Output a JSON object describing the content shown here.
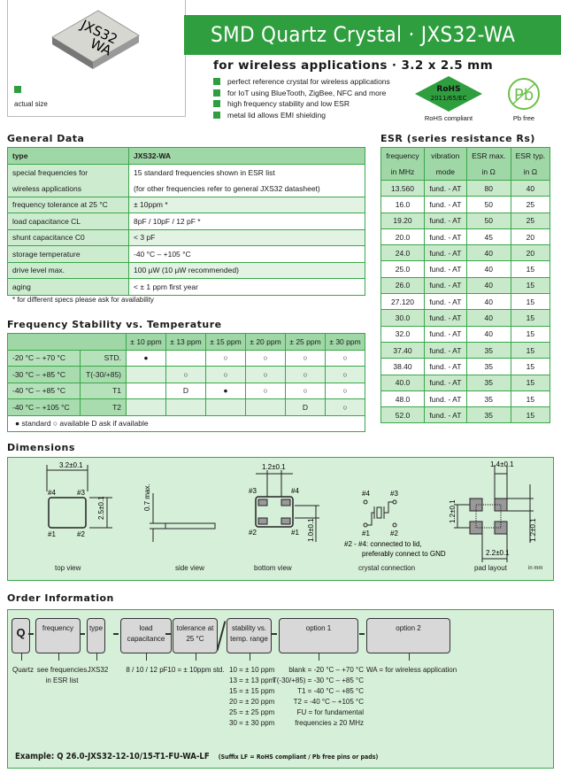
{
  "header": {
    "photo_marking_line1": "JXS32",
    "photo_marking_line2": "WA",
    "actual_size_label": "actual size",
    "title": "SMD Quartz Crystal · JXS32-WA",
    "subtitle": "for wireless applications · 3.2 x 2.5 mm",
    "bullets": [
      "perfect reference crystal for wireless applications",
      "for IoT using BlueTooth, ZigBee, NFC and more",
      "high frequency stability and low ESR",
      "metal lid allows EMI shielding"
    ],
    "rohs_badge": {
      "title": "RoHS",
      "directive": "2011/65/EC",
      "caption": "RoHS compliant"
    },
    "pb_badge": {
      "symbol": "Pb",
      "caption": "Pb free"
    },
    "accent_color": "#2e9e3e"
  },
  "general_data": {
    "heading": "General Data",
    "header_row": [
      "type",
      "JXS32-WA"
    ],
    "rows": [
      [
        "special frequencies for",
        "15 standard frequencies shown in ESR list"
      ],
      [
        "wireless applications",
        "(for other frequencies refer to general JXS32 datasheet)"
      ],
      [
        "frequency tolerance at 25 °C",
        "± 10ppm *"
      ],
      [
        "load capacitance CL",
        "8pF / 10pF / 12 pF *"
      ],
      [
        "shunt capacitance C0",
        "< 3 pF"
      ],
      [
        "storage temperature",
        "-40 °C – +105 °C"
      ],
      [
        "drive level max.",
        "100 µW (10 µW recommended)"
      ],
      [
        "aging",
        "< ± 1 ppm first year"
      ]
    ],
    "footnote": "* for different specs please ask for availability"
  },
  "frequency_stability": {
    "heading": "Frequency Stability vs. Temperature",
    "columns": [
      "± 10 ppm",
      "± 13 ppm",
      "± 15 ppm",
      "± 20 ppm",
      "± 25 ppm",
      "± 30 ppm"
    ],
    "rows": [
      {
        "range": "-20 °C –  +70 °C",
        "code": "STD.",
        "cells": [
          "●",
          "",
          "○",
          "○",
          "○",
          "○"
        ]
      },
      {
        "range": "-30 °C –  +85 °C",
        "code": "T(-30/+85)",
        "cells": [
          "",
          "○",
          "○",
          "○",
          "○",
          "○"
        ]
      },
      {
        "range": "-40 °C –  +85 °C",
        "code": "T1",
        "cells": [
          "",
          "D",
          "●",
          "○",
          "○",
          "○"
        ]
      },
      {
        "range": "-40 °C – +105 °C",
        "code": "T2",
        "cells": [
          "",
          "",
          "",
          "",
          "D",
          "○"
        ]
      }
    ],
    "legend": "●  standard     ○  available     D  ask if available"
  },
  "esr": {
    "heading": "ESR (series resistance Rs)",
    "columns": [
      [
        "frequency",
        "in MHz"
      ],
      [
        "vibration",
        "mode"
      ],
      [
        "ESR max.",
        "in Ω"
      ],
      [
        "ESR typ.",
        "in Ω"
      ]
    ],
    "rows": [
      [
        "13.560",
        "fund. - AT",
        "80",
        "40"
      ],
      [
        "16.0",
        "fund. - AT",
        "50",
        "25"
      ],
      [
        "19.20",
        "fund. - AT",
        "50",
        "25"
      ],
      [
        "20.0",
        "fund. - AT",
        "45",
        "20"
      ],
      [
        "24.0",
        "fund. - AT",
        "40",
        "20"
      ],
      [
        "25.0",
        "fund. - AT",
        "40",
        "15"
      ],
      [
        "26.0",
        "fund. - AT",
        "40",
        "15"
      ],
      [
        "27.120",
        "fund. - AT",
        "40",
        "15"
      ],
      [
        "30.0",
        "fund. - AT",
        "40",
        "15"
      ],
      [
        "32.0",
        "fund. - AT",
        "40",
        "15"
      ],
      [
        "37.40",
        "fund. - AT",
        "35",
        "15"
      ],
      [
        "38.40",
        "fund. - AT",
        "35",
        "15"
      ],
      [
        "40.0",
        "fund. - AT",
        "35",
        "15"
      ],
      [
        "48.0",
        "fund. - AT",
        "35",
        "15"
      ],
      [
        "52.0",
        "fund. - AT",
        "35",
        "15"
      ]
    ]
  },
  "dimensions": {
    "heading": "Dimensions",
    "width_label": "3.2±0.1",
    "height_label": "2.5±0.1",
    "thickness_label": "0.7 max.",
    "pad_pitch_label": "1.2±0.1",
    "pad_height_label": "1.0±0.1",
    "pad_layout_w": "1.4±0.1",
    "pad_layout_h1": "1.2±0.1",
    "pad_layout_h2": "1.2±0.1",
    "pad_layout_span": "2.2±0.1",
    "pins": [
      "#1",
      "#2",
      "#3",
      "#4"
    ],
    "connection_note_1": "#2 - #4: connected to lid,",
    "connection_note_2": "preferably connect to GND",
    "captions": [
      "top view",
      "side view",
      "bottom view",
      "crystal connection",
      "pad layout"
    ],
    "unit": "in mm"
  },
  "order": {
    "heading": "Order Information",
    "boxes": [
      {
        "label": "Q",
        "desc": [
          "Quartz"
        ]
      },
      {
        "label": "frequency",
        "desc": [
          "see frequencies",
          "in ESR list"
        ]
      },
      {
        "label": "type",
        "desc": [
          "JXS32"
        ]
      },
      {
        "label": "load capacitance",
        "desc": [
          "8 / 10 / 12 pF"
        ]
      },
      {
        "label": "tolerance at 25 °C",
        "desc": [
          "10 = ± 10ppm std."
        ]
      },
      {
        "label": "stability vs. temp. range",
        "desc": [
          "10 = ± 10 ppm",
          "13 = ± 13 ppm",
          "15 = ± 15 ppm",
          "20 = ± 20 ppm",
          "25 = ± 25 ppm",
          "30 = ± 30 ppm"
        ]
      },
      {
        "label": "option 1",
        "desc": [
          "blank = -20 °C –  +70 °C",
          "T(-30/+85) = -30 °C –  +85 °C",
          "T1 = -40 °C –  +85 °C",
          "T2 = -40 °C – +105 °C",
          "FU = for fundamental",
          "frequencies ≥ 20 MHz"
        ]
      },
      {
        "label": "option 2",
        "desc": [
          "WA = for wireless application"
        ]
      }
    ],
    "example": "Example: Q 26.0-JXS32-12-10/15-T1-FU-WA-LF",
    "example_suffix": "(Suffix LF = RoHS compliant / Pb free pins or pads)"
  }
}
